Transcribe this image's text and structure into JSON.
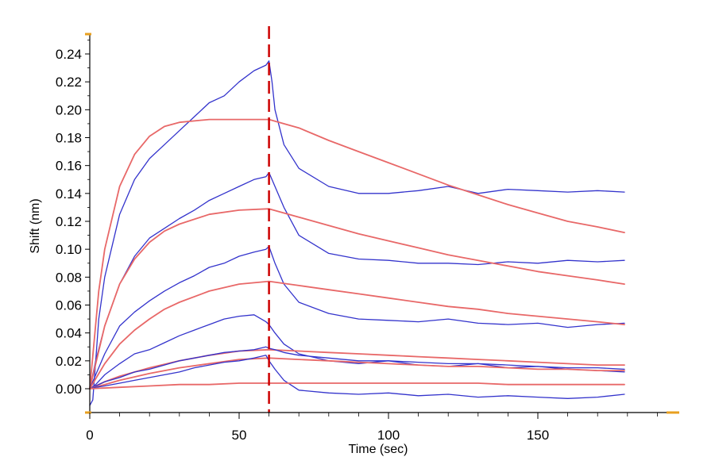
{
  "chart_data": {
    "type": "line",
    "title": "",
    "xlabel": "Time (sec)",
    "ylabel": "Shift (nm)",
    "xlim": [
      0,
      200
    ],
    "ylim": [
      -0.015,
      0.25
    ],
    "x_ticks": [
      0,
      50,
      100,
      150
    ],
    "x_tick_labels": [
      "0",
      "50",
      "100",
      "150"
    ],
    "y_ticks": [
      0.0,
      0.02,
      0.04,
      0.06,
      0.08,
      0.1,
      0.12,
      0.14,
      0.16,
      0.18,
      0.2,
      0.22,
      0.24
    ],
    "y_tick_labels": [
      "0.00",
      "0.02",
      "0.04",
      "0.06",
      "0.08",
      "0.10",
      "0.12",
      "0.14",
      "0.16",
      "0.18",
      "0.20",
      "0.22",
      "0.24"
    ],
    "grid": false,
    "legend": "none",
    "dissociation_marker_x": 60,
    "colors": {
      "measured": "#3333cc",
      "fit": "#e86868",
      "marker": "#cc0000",
      "axis_accent": "#e8a020"
    },
    "series": [
      {
        "kind": "measured",
        "x": [
          0,
          1,
          2,
          3,
          5,
          10,
          15,
          20,
          25,
          30,
          35,
          40,
          45,
          50,
          55,
          59,
          60,
          61,
          62,
          65,
          70,
          80,
          90,
          100,
          110,
          120,
          130,
          140,
          150,
          160,
          170,
          179
        ],
        "y": [
          -0.012,
          -0.008,
          0.02,
          0.05,
          0.08,
          0.125,
          0.15,
          0.165,
          0.175,
          0.185,
          0.195,
          0.205,
          0.21,
          0.22,
          0.228,
          0.232,
          0.235,
          0.22,
          0.2,
          0.175,
          0.158,
          0.145,
          0.14,
          0.14,
          0.142,
          0.145,
          0.14,
          0.143,
          0.142,
          0.141,
          0.142,
          0.141
        ]
      },
      {
        "kind": "fit",
        "x": [
          0,
          3,
          5,
          10,
          15,
          20,
          25,
          30,
          40,
          50,
          60,
          70,
          80,
          90,
          100,
          110,
          120,
          130,
          140,
          150,
          160,
          170,
          179
        ],
        "y": [
          0.0,
          0.07,
          0.1,
          0.145,
          0.168,
          0.181,
          0.188,
          0.191,
          0.193,
          0.193,
          0.193,
          0.187,
          0.178,
          0.17,
          0.162,
          0.154,
          0.146,
          0.139,
          0.132,
          0.126,
          0.12,
          0.116,
          0.112
        ]
      },
      {
        "kind": "measured",
        "x": [
          0,
          2,
          5,
          10,
          15,
          20,
          25,
          30,
          35,
          40,
          45,
          50,
          55,
          59,
          60,
          62,
          65,
          70,
          80,
          90,
          100,
          110,
          120,
          130,
          140,
          150,
          160,
          170,
          179
        ],
        "y": [
          0.0,
          0.02,
          0.045,
          0.075,
          0.095,
          0.108,
          0.115,
          0.122,
          0.128,
          0.135,
          0.14,
          0.145,
          0.15,
          0.152,
          0.155,
          0.145,
          0.13,
          0.11,
          0.097,
          0.093,
          0.092,
          0.09,
          0.09,
          0.089,
          0.091,
          0.09,
          0.092,
          0.091,
          0.092
        ]
      },
      {
        "kind": "fit",
        "x": [
          0,
          5,
          10,
          15,
          20,
          25,
          30,
          40,
          50,
          60,
          70,
          80,
          90,
          100,
          110,
          120,
          130,
          140,
          150,
          160,
          170,
          179
        ],
        "y": [
          0.0,
          0.045,
          0.075,
          0.093,
          0.105,
          0.113,
          0.118,
          0.125,
          0.128,
          0.129,
          0.123,
          0.117,
          0.111,
          0.106,
          0.101,
          0.096,
          0.092,
          0.088,
          0.084,
          0.081,
          0.078,
          0.075
        ]
      },
      {
        "kind": "measured",
        "x": [
          0,
          2,
          5,
          10,
          15,
          20,
          25,
          30,
          35,
          40,
          45,
          50,
          55,
          59,
          60,
          62,
          65,
          70,
          80,
          90,
          100,
          110,
          120,
          130,
          140,
          150,
          160,
          170,
          179
        ],
        "y": [
          0.0,
          0.01,
          0.025,
          0.045,
          0.055,
          0.063,
          0.07,
          0.076,
          0.081,
          0.087,
          0.09,
          0.095,
          0.098,
          0.1,
          0.102,
          0.09,
          0.075,
          0.062,
          0.054,
          0.05,
          0.049,
          0.048,
          0.05,
          0.047,
          0.046,
          0.047,
          0.044,
          0.046,
          0.047
        ]
      },
      {
        "kind": "fit",
        "x": [
          0,
          5,
          10,
          15,
          20,
          25,
          30,
          40,
          50,
          60,
          70,
          80,
          90,
          100,
          110,
          120,
          130,
          140,
          150,
          160,
          170,
          179
        ],
        "y": [
          0.0,
          0.018,
          0.032,
          0.042,
          0.05,
          0.057,
          0.062,
          0.07,
          0.075,
          0.077,
          0.074,
          0.071,
          0.068,
          0.065,
          0.062,
          0.059,
          0.057,
          0.054,
          0.052,
          0.05,
          0.048,
          0.046
        ]
      },
      {
        "kind": "measured",
        "x": [
          0,
          2,
          5,
          10,
          15,
          20,
          25,
          30,
          35,
          40,
          45,
          50,
          55,
          59,
          60,
          62,
          65,
          70,
          80,
          90,
          100,
          110,
          120,
          130,
          140,
          150,
          160,
          170,
          179
        ],
        "y": [
          0.0,
          0.003,
          0.01,
          0.018,
          0.025,
          0.028,
          0.033,
          0.038,
          0.042,
          0.046,
          0.05,
          0.052,
          0.053,
          0.048,
          0.046,
          0.04,
          0.032,
          0.025,
          0.02,
          0.018,
          0.02,
          0.017,
          0.016,
          0.018,
          0.015,
          0.016,
          0.014,
          0.013,
          0.012
        ]
      },
      {
        "kind": "fit",
        "x": [
          0,
          5,
          10,
          20,
          30,
          40,
          50,
          60,
          70,
          80,
          90,
          100,
          110,
          120,
          130,
          140,
          150,
          160,
          170,
          179
        ],
        "y": [
          0.0,
          0.005,
          0.009,
          0.015,
          0.02,
          0.024,
          0.027,
          0.028,
          0.027,
          0.026,
          0.025,
          0.024,
          0.023,
          0.022,
          0.021,
          0.02,
          0.019,
          0.018,
          0.017,
          0.017
        ]
      },
      {
        "kind": "measured",
        "x": [
          0,
          2,
          5,
          10,
          15,
          20,
          25,
          30,
          35,
          40,
          45,
          50,
          55,
          59,
          60,
          62,
          65,
          70,
          80,
          90,
          100,
          110,
          120,
          130,
          140,
          150,
          160,
          170,
          179
        ],
        "y": [
          0.0,
          0.002,
          0.005,
          0.008,
          0.012,
          0.014,
          0.017,
          0.02,
          0.022,
          0.024,
          0.026,
          0.027,
          0.028,
          0.03,
          0.029,
          0.028,
          0.026,
          0.024,
          0.022,
          0.02,
          0.02,
          0.019,
          0.018,
          0.018,
          0.017,
          0.016,
          0.015,
          0.015,
          0.014
        ]
      },
      {
        "kind": "fit",
        "x": [
          0,
          5,
          10,
          20,
          30,
          40,
          50,
          60,
          70,
          80,
          90,
          100,
          110,
          120,
          130,
          140,
          150,
          160,
          170,
          179
        ],
        "y": [
          0.0,
          0.003,
          0.006,
          0.011,
          0.015,
          0.018,
          0.021,
          0.022,
          0.021,
          0.02,
          0.019,
          0.018,
          0.017,
          0.016,
          0.016,
          0.015,
          0.014,
          0.014,
          0.013,
          0.013
        ]
      },
      {
        "kind": "measured",
        "x": [
          0,
          2,
          5,
          10,
          15,
          20,
          25,
          30,
          35,
          40,
          45,
          50,
          55,
          59,
          60,
          62,
          65,
          70,
          80,
          90,
          100,
          110,
          120,
          130,
          140,
          150,
          160,
          170,
          179
        ],
        "y": [
          0.0,
          0.001,
          0.002,
          0.004,
          0.006,
          0.008,
          0.01,
          0.012,
          0.015,
          0.017,
          0.019,
          0.02,
          0.022,
          0.024,
          0.02,
          0.014,
          0.006,
          -0.001,
          -0.003,
          -0.004,
          -0.003,
          -0.005,
          -0.004,
          -0.006,
          -0.005,
          -0.006,
          -0.007,
          -0.006,
          -0.004
        ]
      },
      {
        "kind": "fit",
        "x": [
          0,
          10,
          20,
          30,
          40,
          50,
          60,
          70,
          80,
          90,
          100,
          110,
          120,
          130,
          140,
          150,
          160,
          170,
          179
        ],
        "y": [
          0.0,
          0.001,
          0.002,
          0.003,
          0.003,
          0.004,
          0.004,
          0.004,
          0.004,
          0.004,
          0.004,
          0.004,
          0.004,
          0.004,
          0.003,
          0.003,
          0.003,
          0.003,
          0.003
        ]
      }
    ]
  }
}
